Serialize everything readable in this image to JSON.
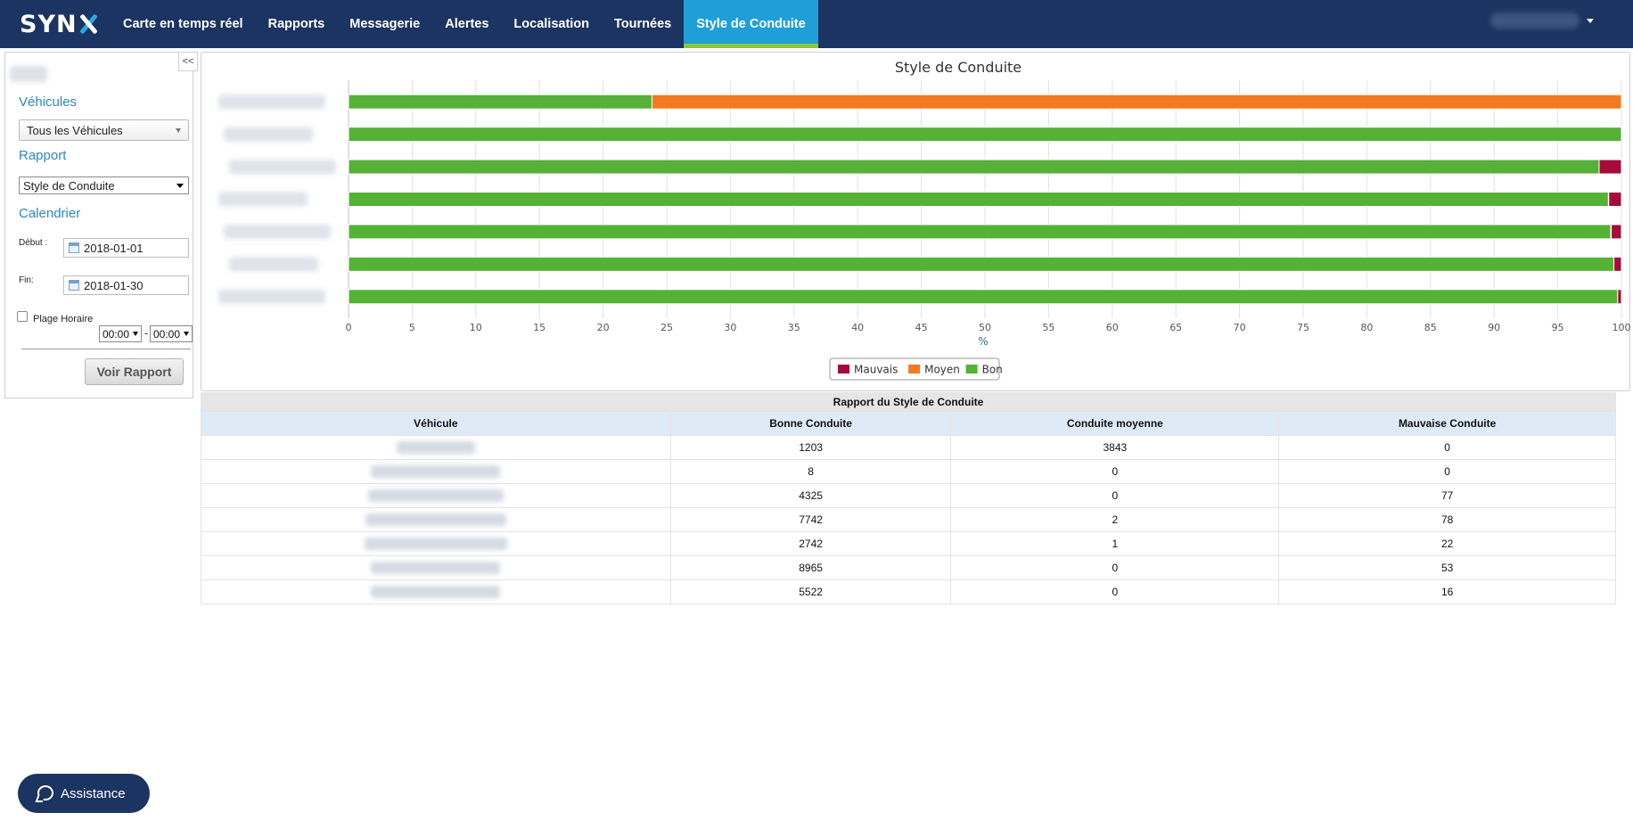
{
  "navbar": {
    "logo_text": "SYN",
    "items": [
      {
        "label": "Carte en temps réel"
      },
      {
        "label": "Rapports"
      },
      {
        "label": "Messagerie"
      },
      {
        "label": "Alertes"
      },
      {
        "label": "Localisation"
      },
      {
        "label": "Tournées"
      },
      {
        "label": "Style de Conduite",
        "active": true
      }
    ]
  },
  "sidebar": {
    "collapse_label": "<<",
    "vehicles_label": "Véhicules",
    "vehicles_select": "Tous les Véhicules",
    "report_label": "Rapport",
    "report_select": "Style de Conduite",
    "calendar_label": "Calendrier",
    "start_label": "Début :",
    "start_date": "2018-01-01",
    "end_label": "Fin:",
    "end_date": "2018-01-30",
    "time_range_label": "Plage Horaire",
    "time_from": "00:00",
    "time_sep": "-",
    "time_to": "00:00",
    "submit_label": "Voir Rapport"
  },
  "chart_data": {
    "type": "bar",
    "orientation": "horizontal",
    "stacked": "percent",
    "title": "Style de Conduite",
    "xlabel": "%",
    "xlim": [
      0,
      100
    ],
    "x_ticks": [
      0,
      5,
      10,
      15,
      20,
      25,
      30,
      35,
      40,
      45,
      50,
      55,
      60,
      65,
      70,
      75,
      80,
      85,
      90,
      95,
      100
    ],
    "categories": [
      "",
      "",
      "",
      "",
      "",
      "",
      ""
    ],
    "series": [
      {
        "name": "Mauvais",
        "color": "#a50c3a",
        "values": [
          0,
          0,
          77,
          78,
          22,
          53,
          16
        ]
      },
      {
        "name": "Moyen",
        "color": "#f47920",
        "values": [
          3843,
          0,
          0,
          2,
          1,
          0,
          0
        ]
      },
      {
        "name": "Bon",
        "color": "#55b236",
        "values": [
          1203,
          8,
          4325,
          7742,
          2742,
          8965,
          5522
        ]
      }
    ],
    "grid": true,
    "legend": "bottom-center"
  },
  "table": {
    "caption": "Rapport du Style de Conduite",
    "headers": [
      "Véhicule",
      "Bonne Conduite",
      "Conduite moyenne",
      "Mauvaise Conduite"
    ],
    "rows": [
      {
        "bonne": "1203",
        "moyenne": "3843",
        "mauvaise": "0"
      },
      {
        "bonne": "8",
        "moyenne": "0",
        "mauvaise": "0"
      },
      {
        "bonne": "4325",
        "moyenne": "0",
        "mauvaise": "77"
      },
      {
        "bonne": "7742",
        "moyenne": "2",
        "mauvaise": "78"
      },
      {
        "bonne": "2742",
        "moyenne": "1",
        "mauvaise": "22"
      },
      {
        "bonne": "8965",
        "moyenne": "0",
        "mauvaise": "53"
      },
      {
        "bonne": "5522",
        "moyenne": "0",
        "mauvaise": "16"
      }
    ]
  },
  "assistance": {
    "label": "Assistance"
  }
}
